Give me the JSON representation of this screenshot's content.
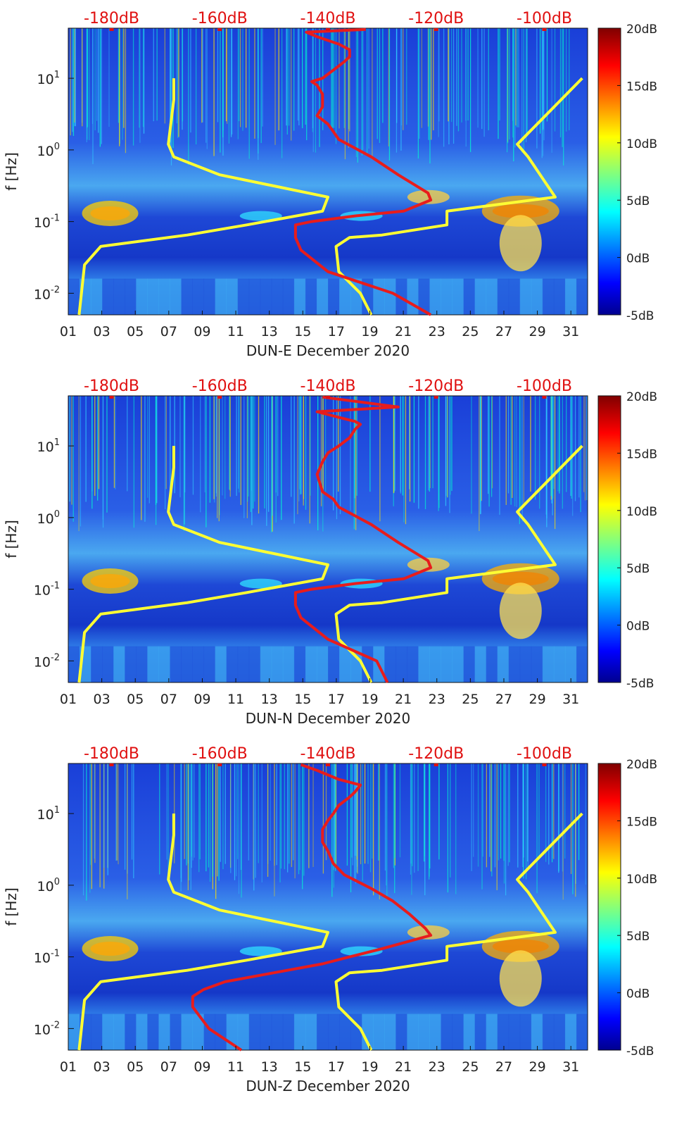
{
  "colors": {
    "noise_model": "#ffff33",
    "median_psd": "#e81c1c",
    "top_axis_text": "#e01010",
    "text": "#222222"
  },
  "colorbar_ticks": [
    "20dB",
    "15dB",
    "10dB",
    "5dB",
    "0dB",
    "-5dB"
  ],
  "chart_data": [
    {
      "type": "heatmap",
      "xlabel": "DUN-E December 2020",
      "ylabel": "f [Hz]",
      "x_ticks": [
        "01",
        "03",
        "05",
        "07",
        "09",
        "11",
        "13",
        "15",
        "17",
        "19",
        "21",
        "23",
        "25",
        "27",
        "29",
        "31"
      ],
      "y_ticks": [
        "10^1",
        "10^0",
        "10^-1",
        "10^-2"
      ],
      "top_ticks": [
        "-180dB",
        "-160dB",
        "-140dB",
        "-120dB",
        "-100dB"
      ],
      "x_range_days": [
        1,
        32
      ],
      "y_range_hz": [
        0.005,
        50
      ],
      "top_range_db": [
        -188,
        -92
      ],
      "colorbar_range_db": [
        -5,
        20
      ],
      "noise_models": [
        {
          "db": [
            -168.5,
            -168.5,
            -169.5,
            -168.5,
            -160,
            -140,
            -141,
            -155,
            -166,
            -182,
            -185,
            -186
          ],
          "f": [
            10,
            5,
            1.2,
            0.8,
            0.45,
            0.22,
            0.14,
            0.09,
            0.065,
            0.045,
            0.025,
            0.005
          ]
        },
        {
          "db": [
            -132,
            -134,
            -138,
            -138.5,
            -136,
            -130,
            -118,
            -118,
            -98,
            -103,
            -105,
            -93
          ],
          "f": [
            0.005,
            0.01,
            0.02,
            0.045,
            0.06,
            0.065,
            0.09,
            0.14,
            0.22,
            0.8,
            1.2,
            10
          ]
        }
      ],
      "median_psd": {
        "db": [
          -121,
          -128,
          -140,
          -145,
          -146,
          -146,
          -143,
          -135,
          -126,
          -121,
          -121.5,
          -127,
          -132,
          -138,
          -139,
          -140,
          -142,
          -141,
          -141,
          -142,
          -143,
          -141,
          -139,
          -137,
          -136,
          -136,
          -138,
          -142,
          -144,
          -133
        ],
        "f": [
          0.005,
          0.01,
          0.02,
          0.04,
          0.06,
          0.09,
          0.1,
          0.12,
          0.14,
          0.2,
          0.25,
          0.45,
          0.8,
          1.4,
          1.8,
          2.3,
          3,
          4,
          6,
          8,
          9,
          10,
          13,
          17,
          20,
          25,
          30,
          38,
          44,
          48
        ]
      }
    },
    {
      "type": "heatmap",
      "xlabel": "DUN-N December 2020",
      "ylabel": "f [Hz]",
      "x_ticks": [
        "01",
        "03",
        "05",
        "07",
        "09",
        "11",
        "13",
        "15",
        "17",
        "19",
        "21",
        "23",
        "25",
        "27",
        "29",
        "31"
      ],
      "y_ticks": [
        "10^1",
        "10^0",
        "10^-1",
        "10^-2"
      ],
      "top_ticks": [
        "-180dB",
        "-160dB",
        "-140dB",
        "-120dB",
        "-100dB"
      ],
      "x_range_days": [
        1,
        32
      ],
      "y_range_hz": [
        0.005,
        50
      ],
      "top_range_db": [
        -188,
        -92
      ],
      "colorbar_range_db": [
        -5,
        20
      ],
      "noise_models": [
        {
          "db": [
            -168.5,
            -168.5,
            -169.5,
            -168.5,
            -160,
            -140,
            -141,
            -155,
            -166,
            -182,
            -185,
            -186
          ],
          "f": [
            10,
            5,
            1.2,
            0.8,
            0.45,
            0.22,
            0.14,
            0.09,
            0.065,
            0.045,
            0.025,
            0.005
          ]
        },
        {
          "db": [
            -132,
            -134,
            -138,
            -138.5,
            -136,
            -130,
            -118,
            -118,
            -98,
            -103,
            -105,
            -93
          ],
          "f": [
            0.005,
            0.01,
            0.02,
            0.045,
            0.06,
            0.065,
            0.09,
            0.14,
            0.22,
            0.8,
            1.2,
            10
          ]
        }
      ],
      "median_psd": {
        "db": [
          -129,
          -131,
          -140,
          -145,
          -146,
          -146,
          -143,
          -135,
          -126,
          -121,
          -121.5,
          -127,
          -132,
          -138,
          -139,
          -141,
          -141.5,
          -142,
          -141,
          -140,
          -138,
          -136,
          -135,
          -134,
          -135,
          -138,
          -142,
          -127,
          -141
        ],
        "f": [
          0.005,
          0.01,
          0.02,
          0.04,
          0.06,
          0.09,
          0.1,
          0.12,
          0.14,
          0.2,
          0.25,
          0.45,
          0.8,
          1.4,
          1.8,
          2.3,
          3,
          4,
          6,
          8,
          10,
          13,
          17,
          20,
          22,
          25,
          30,
          35,
          48
        ]
      }
    },
    {
      "type": "heatmap",
      "xlabel": "DUN-Z December 2020",
      "ylabel": "f [Hz]",
      "x_ticks": [
        "01",
        "03",
        "05",
        "07",
        "09",
        "11",
        "13",
        "15",
        "17",
        "19",
        "21",
        "23",
        "25",
        "27",
        "29",
        "31"
      ],
      "y_ticks": [
        "10^1",
        "10^0",
        "10^-1",
        "10^-2"
      ],
      "top_ticks": [
        "-180dB",
        "-160dB",
        "-140dB",
        "-120dB",
        "-100dB"
      ],
      "x_range_days": [
        1,
        32
      ],
      "y_range_hz": [
        0.005,
        50
      ],
      "top_range_db": [
        -188,
        -92
      ],
      "colorbar_range_db": [
        -5,
        20
      ],
      "noise_models": [
        {
          "db": [
            -168.5,
            -168.5,
            -169.5,
            -168.5,
            -160,
            -140,
            -141,
            -155,
            -166,
            -182,
            -185,
            -186
          ],
          "f": [
            10,
            5,
            1.2,
            0.8,
            0.45,
            0.22,
            0.14,
            0.09,
            0.065,
            0.045,
            0.025,
            0.005
          ]
        },
        {
          "db": [
            -132,
            -134,
            -138,
            -138.5,
            -136,
            -130,
            -118,
            -118,
            -98,
            -103,
            -105,
            -93
          ],
          "f": [
            0.005,
            0.01,
            0.02,
            0.045,
            0.06,
            0.065,
            0.09,
            0.14,
            0.22,
            0.8,
            1.2,
            10
          ]
        }
      ],
      "median_psd": {
        "db": [
          -156,
          -162,
          -165,
          -165,
          -163,
          -159,
          -150,
          -141,
          -136,
          -130,
          -121,
          -122,
          -125,
          -128,
          -132,
          -137,
          -139,
          -140,
          -141,
          -141,
          -140,
          -139,
          -138,
          -136,
          -135,
          -134,
          -138,
          -142,
          -145
        ],
        "f": [
          0.005,
          0.01,
          0.02,
          0.028,
          0.035,
          0.045,
          0.06,
          0.08,
          0.1,
          0.13,
          0.2,
          0.25,
          0.4,
          0.6,
          0.9,
          1.4,
          2,
          3,
          4,
          6,
          8,
          10,
          13,
          17,
          20,
          25,
          30,
          40,
          48
        ]
      }
    }
  ]
}
